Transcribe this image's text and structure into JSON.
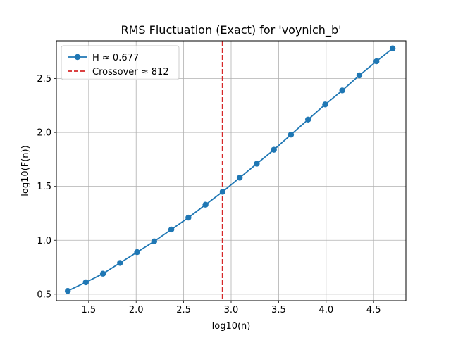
{
  "chart_data": {
    "type": "line",
    "title": "RMS Fluctuation (Exact) for 'voynich_b'",
    "xlabel": "log10(n)",
    "ylabel": "log10(F(n))",
    "xlim": [
      1.16,
      4.84
    ],
    "ylim": [
      0.44,
      2.85
    ],
    "xticks": [
      1.5,
      2.0,
      2.5,
      3.0,
      3.5,
      4.0,
      4.5
    ],
    "xtick_labels": [
      "1.5",
      "2.0",
      "2.5",
      "3.0",
      "3.5",
      "4.0",
      "4.5"
    ],
    "yticks": [
      0.5,
      1.0,
      1.5,
      2.0,
      2.5
    ],
    "ytick_labels": [
      "0.5",
      "1.0",
      "1.5",
      "2.0",
      "2.5"
    ],
    "grid": true,
    "legend_position": "top-left",
    "series": [
      {
        "name": "H ≈ 0.677",
        "color": "#1f77b4",
        "marker": "circle",
        "x": [
          1.28,
          1.47,
          1.65,
          1.83,
          2.01,
          2.19,
          2.37,
          2.55,
          2.73,
          2.91,
          3.09,
          3.27,
          3.45,
          3.63,
          3.81,
          3.99,
          4.17,
          4.35,
          4.53,
          4.7
        ],
        "y": [
          0.53,
          0.61,
          0.69,
          0.79,
          0.89,
          0.99,
          1.1,
          1.21,
          1.33,
          1.45,
          1.58,
          1.71,
          1.84,
          1.98,
          2.12,
          2.26,
          2.39,
          2.53,
          2.66,
          2.78
        ]
      }
    ],
    "vlines": [
      {
        "name": "Crossover ≈ 812",
        "x": 2.9096,
        "color": "#d62728",
        "style": "dashed"
      }
    ]
  }
}
